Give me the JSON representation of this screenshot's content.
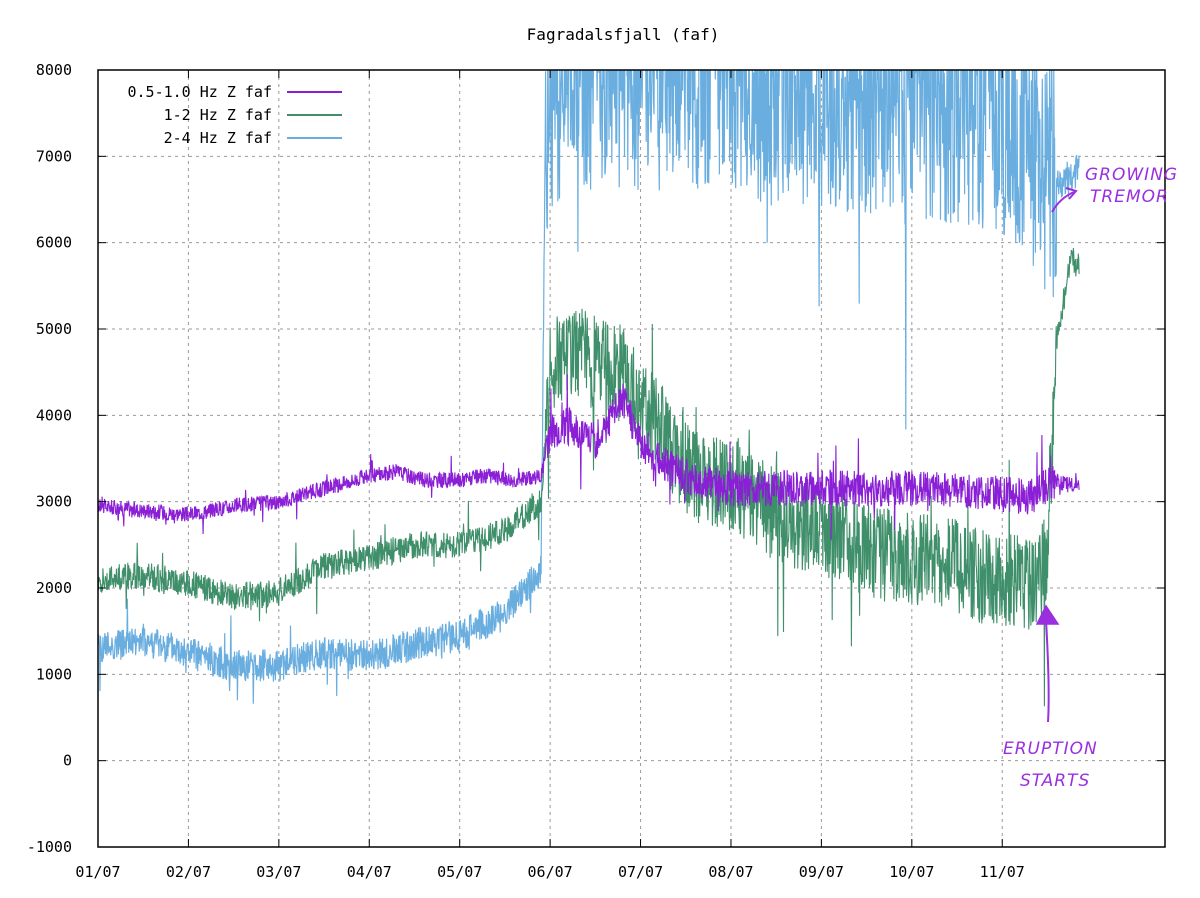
{
  "chart_data": {
    "type": "line",
    "title": "Fagradalsfjall (faf)",
    "xlabel": "",
    "ylabel": "",
    "x_ticks": [
      "01/07",
      "02/07",
      "03/07",
      "04/07",
      "05/07",
      "06/07",
      "07/07",
      "08/07",
      "09/07",
      "10/07",
      "11/07"
    ],
    "xlim": [
      0,
      11.8
    ],
    "y_ticks": [
      -1000,
      0,
      1000,
      2000,
      3000,
      4000,
      5000,
      6000,
      7000,
      8000
    ],
    "y_tick_labels": [
      "-1000",
      "0",
      "1000",
      "2000",
      "3000",
      "4000",
      "5000",
      "6000",
      "7000",
      "8000"
    ],
    "ylim": [
      -1000,
      8000
    ],
    "grid": true,
    "legend_position": "top-left",
    "series": [
      {
        "name": "0.5-1.0 Hz Z faf",
        "color": "#8a1fd6",
        "points": [
          [
            0,
            2950
          ],
          [
            0.5,
            2900
          ],
          [
            1,
            2850
          ],
          [
            1.5,
            2950
          ],
          [
            2,
            3000
          ],
          [
            2.5,
            3150
          ],
          [
            3,
            3300
          ],
          [
            3.3,
            3350
          ],
          [
            3.6,
            3250
          ],
          [
            4,
            3250
          ],
          [
            4.3,
            3300
          ],
          [
            4.6,
            3250
          ],
          [
            4.9,
            3300
          ],
          [
            5.0,
            3800
          ],
          [
            5.2,
            3900
          ],
          [
            5.5,
            3700
          ],
          [
            5.8,
            4200
          ],
          [
            6.0,
            3700
          ],
          [
            6.3,
            3400
          ],
          [
            6.6,
            3250
          ],
          [
            7,
            3150
          ],
          [
            7.4,
            3150
          ],
          [
            7.8,
            3150
          ],
          [
            8.2,
            3150
          ],
          [
            8.6,
            3150
          ],
          [
            9,
            3150
          ],
          [
            9.4,
            3150
          ],
          [
            9.9,
            3100
          ],
          [
            10.3,
            3050
          ],
          [
            10.6,
            3250
          ],
          [
            10.7,
            3200
          ],
          [
            10.85,
            3200
          ]
        ]
      },
      {
        "name": "1-2 Hz Z faf",
        "color": "#3f8f6a",
        "points": [
          [
            0,
            2100
          ],
          [
            0.5,
            2150
          ],
          [
            1,
            2050
          ],
          [
            1.5,
            1900
          ],
          [
            2,
            1950
          ],
          [
            2.5,
            2250
          ],
          [
            3,
            2350
          ],
          [
            3.5,
            2500
          ],
          [
            4,
            2500
          ],
          [
            4.5,
            2650
          ],
          [
            4.9,
            3000
          ],
          [
            5.0,
            4500
          ],
          [
            5.2,
            4800
          ],
          [
            5.5,
            4600
          ],
          [
            5.8,
            4500
          ],
          [
            6.0,
            4200
          ],
          [
            6.3,
            3700
          ],
          [
            6.6,
            3300
          ],
          [
            7,
            3200
          ],
          [
            7.4,
            2900
          ],
          [
            7.8,
            2700
          ],
          [
            8.2,
            2600
          ],
          [
            8.6,
            2400
          ],
          [
            9,
            2350
          ],
          [
            9.4,
            2300
          ],
          [
            9.7,
            2150
          ],
          [
            10.0,
            2100
          ],
          [
            10.3,
            2050
          ],
          [
            10.5,
            2300
          ],
          [
            10.6,
            4800
          ],
          [
            10.75,
            5800
          ],
          [
            10.85,
            5750
          ]
        ]
      },
      {
        "name": "2-4 Hz Z faf",
        "color": "#6aaee0",
        "points": [
          [
            0,
            1300
          ],
          [
            0.5,
            1400
          ],
          [
            1,
            1250
          ],
          [
            1.5,
            1100
          ],
          [
            2,
            1100
          ],
          [
            2.5,
            1250
          ],
          [
            3,
            1200
          ],
          [
            3.5,
            1350
          ],
          [
            4,
            1450
          ],
          [
            4.5,
            1700
          ],
          [
            4.9,
            2200
          ],
          [
            4.95,
            7500
          ],
          [
            5.2,
            8000
          ],
          [
            5.5,
            8000
          ],
          [
            6,
            8000
          ],
          [
            6.5,
            8000
          ],
          [
            7,
            8000
          ],
          [
            7.5,
            7800
          ],
          [
            8,
            7800
          ],
          [
            8.5,
            7700
          ],
          [
            9,
            7700
          ],
          [
            9.5,
            7600
          ],
          [
            9.9,
            7500
          ],
          [
            10.2,
            7300
          ],
          [
            10.4,
            6900
          ],
          [
            10.5,
            6700
          ],
          [
            10.7,
            6700
          ],
          [
            10.85,
            6850
          ]
        ]
      }
    ],
    "annotations": [
      {
        "id": "growing-tremor",
        "lines": [
          "GROWING",
          "TREMOR"
        ],
        "target": [
          10.75,
          6600
        ]
      },
      {
        "id": "eruption-starts",
        "lines": [
          "ERUPTION",
          "STARTS"
        ],
        "target": [
          10.55,
          1800
        ]
      }
    ]
  }
}
